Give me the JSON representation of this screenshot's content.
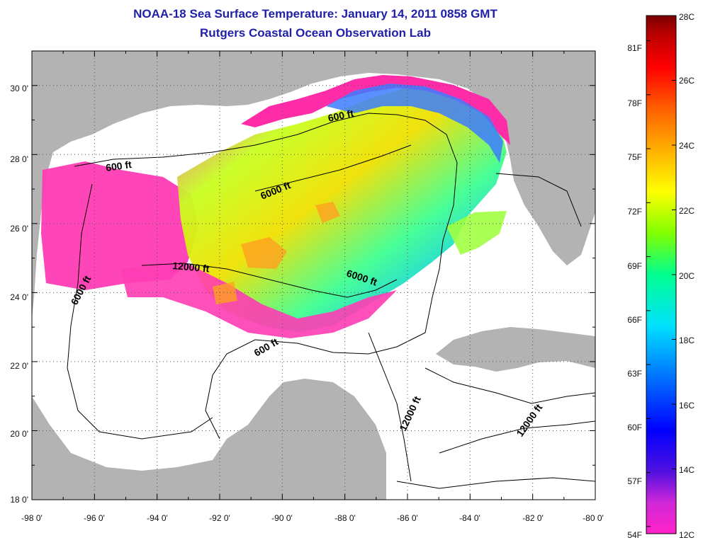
{
  "title": {
    "line1": "NOAA-18 Sea Surface Temperature:  January 14, 2011 0858 GMT",
    "line2": "Rutgers Coastal Ocean Observation Lab"
  },
  "map": {
    "lon_range": [
      -98,
      -80
    ],
    "lat_range": [
      18,
      31
    ],
    "x_ticks": [
      "-98 0'",
      "-96 0'",
      "-94 0'",
      "-92 0'",
      "-90 0'",
      "-88 0'",
      "-86 0'",
      "-84 0'",
      "-82 0'",
      "-80 0'"
    ],
    "y_ticks": [
      "30 0'",
      "28 0'",
      "26 0'",
      "24 0'",
      "22 0'",
      "20 0'",
      "18 0'"
    ],
    "grid": "dotted",
    "contour_labels": [
      "600 ft",
      "600 ft",
      "600 ft",
      "6000 ft",
      "6000 ft",
      "6000 ft",
      "12000 ft",
      "12000 ft",
      "12000 ft"
    ],
    "colors": {
      "land": "#b3b3b3",
      "cloud_or_no_data": "#ffffff"
    }
  },
  "colorbar": {
    "celsius": [
      "28C",
      "26C",
      "24C",
      "22C",
      "20C",
      "18C",
      "16C",
      "14C",
      "12C"
    ],
    "fahrenheit": [
      "81F",
      "78F",
      "75F",
      "72F",
      "69F",
      "66F",
      "63F",
      "60F",
      "57F",
      "54F"
    ],
    "range_c": [
      12,
      28
    ],
    "gradient": [
      "#ff22c8",
      "#c030e0",
      "#5010e0",
      "#0000ff",
      "#0078ff",
      "#00e8ff",
      "#00ff90",
      "#a0ff00",
      "#ffff00",
      "#ffb000",
      "#ff6000",
      "#ff0000",
      "#c00000",
      "#7a0000"
    ]
  }
}
